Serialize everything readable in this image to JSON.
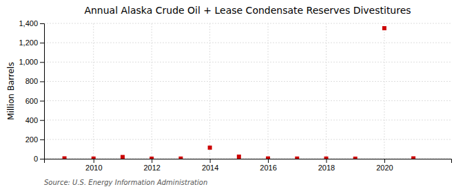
{
  "chart_data": {
    "type": "scatter",
    "title": "Annual Alaska Crude Oil + Lease Condensate Reserves Divestitures",
    "ylabel": "Million Barrels",
    "source": "Source: U.S. Energy Information Administration",
    "x": [
      2009,
      2010,
      2011,
      2012,
      2013,
      2014,
      2015,
      2016,
      2017,
      2018,
      2019,
      2020,
      2021
    ],
    "values": [
      4,
      2,
      18,
      1,
      2,
      115,
      22,
      3,
      2,
      2,
      1,
      1350,
      4
    ],
    "color": "#cc0000",
    "marker": "square",
    "xlim": [
      2008.3,
      2022.3
    ],
    "xticks": [
      2010,
      2012,
      2014,
      2016,
      2018,
      2020
    ],
    "ylim": [
      0,
      1400
    ],
    "yticks": [
      0,
      200,
      400,
      600,
      800,
      {
        "value": 1000,
        "label": "1,000"
      },
      {
        "value": 1200,
        "label": "1,200"
      },
      {
        "value": 1400,
        "label": "1,400"
      }
    ],
    "grid": true
  }
}
